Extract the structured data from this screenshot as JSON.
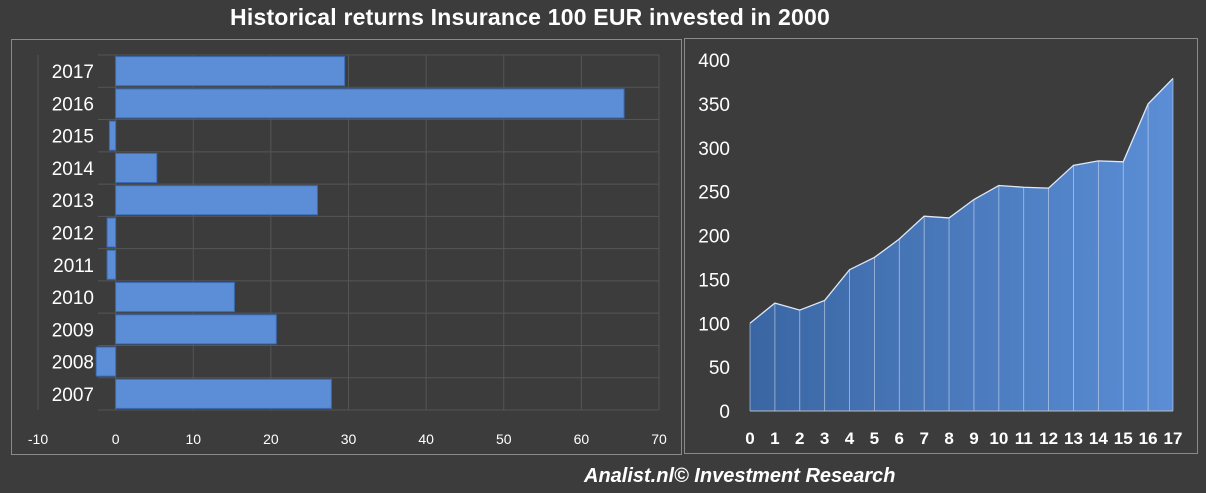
{
  "title": "Historical returns Insurance 100 EUR invested in 2000",
  "footer": "Analist.nl© Investment Research",
  "colors": {
    "background": "#3c3c3c",
    "bar_fill": "#5b8ed6",
    "area_fill_top": "#5b8ed6",
    "area_fill_bottom": "#3a66a3",
    "grid": "#555555"
  },
  "chart_data": [
    {
      "type": "bar",
      "orientation": "horizontal",
      "categories": [
        "2017",
        "2016",
        "2015",
        "2014",
        "2013",
        "2012",
        "2011",
        "2010",
        "2009",
        "2008",
        "2007"
      ],
      "values": [
        29.5,
        65.5,
        -0.8,
        5.3,
        26.0,
        -1.1,
        -1.1,
        15.3,
        20.7,
        -2.5,
        27.8
      ],
      "xlim": [
        -10,
        70
      ],
      "xticks": [
        -10,
        0,
        10,
        20,
        30,
        40,
        50,
        60,
        70
      ],
      "grid": true
    },
    {
      "type": "area",
      "x": [
        0,
        1,
        2,
        3,
        4,
        5,
        6,
        7,
        8,
        9,
        10,
        11,
        12,
        13,
        14,
        15,
        16,
        17
      ],
      "values": [
        100,
        123,
        115,
        126,
        161,
        175,
        196,
        222,
        220,
        241,
        257,
        255,
        254,
        280,
        285,
        284,
        350,
        379
      ],
      "ylim": [
        0,
        400
      ],
      "yticks": [
        0,
        50,
        100,
        150,
        200,
        250,
        300,
        350,
        400
      ],
      "grid": false
    }
  ]
}
